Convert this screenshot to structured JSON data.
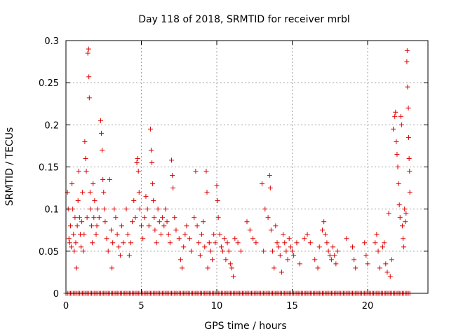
{
  "chart_data": {
    "type": "scatter",
    "title": "Day 118 of 2018, SRMTID for receiver mrbl",
    "xlabel": "GPS time / hours",
    "ylabel": "SRMTID / TECUs",
    "xlim": [
      0,
      24
    ],
    "ylim": [
      0,
      0.3
    ],
    "xticks": [
      0,
      5,
      10,
      15,
      20
    ],
    "yticks": [
      0,
      0.05,
      0.1,
      0.15,
      0.2,
      0.25,
      0.3
    ],
    "ytick_labels": [
      "0",
      "0.05",
      "0.1",
      "0.15",
      "0.2",
      "0.25",
      "0.3"
    ],
    "grid": true,
    "marker": "+",
    "series": [
      {
        "name": "SRMTID",
        "color": "#dd0000",
        "points": [
          [
            0.1,
            0.12
          ],
          [
            0.15,
            0.1
          ],
          [
            0.2,
            0.065
          ],
          [
            0.25,
            0.06
          ],
          [
            0.3,
            0.08
          ],
          [
            0.35,
            0.055
          ],
          [
            0.4,
            0.13
          ],
          [
            0.45,
            0.1
          ],
          [
            0.5,
            0.07
          ],
          [
            0.55,
            0.05
          ],
          [
            0.6,
            0.09
          ],
          [
            0.65,
            0.06
          ],
          [
            0.7,
            0.03
          ],
          [
            0.75,
            0.08
          ],
          [
            0.8,
            0.11
          ],
          [
            0.85,
            0.145
          ],
          [
            0.9,
            0.09
          ],
          [
            0.95,
            0.07
          ],
          [
            1.0,
            0.055
          ],
          [
            1.05,
            0.085
          ],
          [
            1.1,
            0.12
          ],
          [
            1.15,
            0.05
          ],
          [
            1.2,
            0.07
          ],
          [
            1.25,
            0.18
          ],
          [
            1.3,
            0.16
          ],
          [
            1.35,
            0.145
          ],
          [
            1.4,
            0.09
          ],
          [
            1.45,
            0.285
          ],
          [
            1.5,
            0.29
          ],
          [
            1.52,
            0.257
          ],
          [
            1.55,
            0.232
          ],
          [
            1.6,
            0.12
          ],
          [
            1.65,
            0.1
          ],
          [
            1.7,
            0.08
          ],
          [
            1.75,
            0.06
          ],
          [
            1.8,
            0.13
          ],
          [
            1.85,
            0.09
          ],
          [
            1.9,
            0.11
          ],
          [
            2.0,
            0.07
          ],
          [
            2.05,
            0.08
          ],
          [
            2.1,
            0.1
          ],
          [
            2.2,
            0.09
          ],
          [
            2.3,
            0.205
          ],
          [
            2.35,
            0.19
          ],
          [
            2.4,
            0.17
          ],
          [
            2.45,
            0.135
          ],
          [
            2.5,
            0.12
          ],
          [
            2.55,
            0.1
          ],
          [
            2.6,
            0.085
          ],
          [
            2.7,
            0.065
          ],
          [
            2.8,
            0.05
          ],
          [
            2.9,
            0.135
          ],
          [
            3.0,
            0.075
          ],
          [
            3.05,
            0.03
          ],
          [
            3.1,
            0.06
          ],
          [
            3.2,
            0.1
          ],
          [
            3.3,
            0.09
          ],
          [
            3.4,
            0.07
          ],
          [
            3.5,
            0.055
          ],
          [
            3.6,
            0.045
          ],
          [
            3.7,
            0.08
          ],
          [
            3.8,
            0.06
          ],
          [
            4.0,
            0.1
          ],
          [
            4.1,
            0.07
          ],
          [
            4.2,
            0.045
          ],
          [
            4.3,
            0.06
          ],
          [
            4.4,
            0.085
          ],
          [
            4.5,
            0.11
          ],
          [
            4.6,
            0.09
          ],
          [
            4.7,
            0.155
          ],
          [
            4.75,
            0.16
          ],
          [
            4.8,
            0.145
          ],
          [
            4.85,
            0.12
          ],
          [
            4.9,
            0.1
          ],
          [
            5.0,
            0.08
          ],
          [
            5.1,
            0.065
          ],
          [
            5.2,
            0.09
          ],
          [
            5.3,
            0.115
          ],
          [
            5.4,
            0.1
          ],
          [
            5.5,
            0.08
          ],
          [
            5.6,
            0.195
          ],
          [
            5.65,
            0.17
          ],
          [
            5.7,
            0.155
          ],
          [
            5.75,
            0.13
          ],
          [
            5.8,
            0.11
          ],
          [
            5.85,
            0.09
          ],
          [
            5.9,
            0.075
          ],
          [
            6.0,
            0.06
          ],
          [
            6.1,
            0.1
          ],
          [
            6.2,
            0.085
          ],
          [
            6.3,
            0.07
          ],
          [
            6.4,
            0.09
          ],
          [
            6.5,
            0.08
          ],
          [
            6.6,
            0.1
          ],
          [
            6.7,
            0.085
          ],
          [
            6.8,
            0.07
          ],
          [
            6.9,
            0.06
          ],
          [
            7.0,
            0.158
          ],
          [
            7.05,
            0.14
          ],
          [
            7.1,
            0.125
          ],
          [
            7.2,
            0.09
          ],
          [
            7.3,
            0.075
          ],
          [
            7.5,
            0.065
          ],
          [
            7.6,
            0.04
          ],
          [
            7.7,
            0.03
          ],
          [
            7.8,
            0.055
          ],
          [
            7.9,
            0.07
          ],
          [
            8.0,
            0.08
          ],
          [
            8.2,
            0.065
          ],
          [
            8.3,
            0.05
          ],
          [
            8.5,
            0.09
          ],
          [
            8.6,
            0.145
          ],
          [
            8.7,
            0.08
          ],
          [
            8.8,
            0.06
          ],
          [
            8.9,
            0.045
          ],
          [
            9.0,
            0.07
          ],
          [
            9.1,
            0.085
          ],
          [
            9.2,
            0.055
          ],
          [
            9.3,
            0.145
          ],
          [
            9.35,
            0.12
          ],
          [
            9.4,
            0.03
          ],
          [
            9.5,
            0.06
          ],
          [
            9.6,
            0.05
          ],
          [
            9.7,
            0.04
          ],
          [
            9.8,
            0.07
          ],
          [
            9.9,
            0.06
          ],
          [
            10.0,
            0.128
          ],
          [
            10.05,
            0.11
          ],
          [
            10.1,
            0.09
          ],
          [
            10.2,
            0.07
          ],
          [
            10.3,
            0.055
          ],
          [
            10.4,
            0.05
          ],
          [
            10.5,
            0.065
          ],
          [
            10.6,
            0.04
          ],
          [
            10.7,
            0.06
          ],
          [
            10.8,
            0.05
          ],
          [
            10.9,
            0.035
          ],
          [
            11.0,
            0.03
          ],
          [
            11.1,
            0.02
          ],
          [
            11.2,
            0.065
          ],
          [
            11.4,
            0.06
          ],
          [
            11.6,
            0.05
          ],
          [
            12.0,
            0.085
          ],
          [
            12.2,
            0.075
          ],
          [
            12.4,
            0.065
          ],
          [
            12.6,
            0.06
          ],
          [
            13.0,
            0.13
          ],
          [
            13.1,
            0.05
          ],
          [
            13.2,
            0.1
          ],
          [
            13.4,
            0.09
          ],
          [
            13.5,
            0.14
          ],
          [
            13.55,
            0.125
          ],
          [
            13.6,
            0.075
          ],
          [
            13.7,
            0.05
          ],
          [
            13.8,
            0.03
          ],
          [
            13.9,
            0.08
          ],
          [
            14.0,
            0.06
          ],
          [
            14.1,
            0.055
          ],
          [
            14.2,
            0.045
          ],
          [
            14.3,
            0.025
          ],
          [
            14.4,
            0.07
          ],
          [
            14.5,
            0.06
          ],
          [
            14.6,
            0.05
          ],
          [
            14.7,
            0.04
          ],
          [
            14.8,
            0.065
          ],
          [
            14.9,
            0.055
          ],
          [
            15.0,
            0.05
          ],
          [
            15.1,
            0.045
          ],
          [
            15.3,
            0.06
          ],
          [
            15.5,
            0.035
          ],
          [
            15.8,
            0.065
          ],
          [
            16.0,
            0.07
          ],
          [
            16.2,
            0.06
          ],
          [
            16.5,
            0.04
          ],
          [
            16.7,
            0.03
          ],
          [
            16.8,
            0.055
          ],
          [
            17.0,
            0.075
          ],
          [
            17.1,
            0.085
          ],
          [
            17.2,
            0.07
          ],
          [
            17.3,
            0.06
          ],
          [
            17.4,
            0.05
          ],
          [
            17.5,
            0.045
          ],
          [
            17.6,
            0.04
          ],
          [
            17.7,
            0.055
          ],
          [
            17.8,
            0.045
          ],
          [
            17.9,
            0.035
          ],
          [
            18.0,
            0.05
          ],
          [
            18.6,
            0.065
          ],
          [
            19.0,
            0.055
          ],
          [
            19.1,
            0.04
          ],
          [
            19.2,
            0.03
          ],
          [
            19.8,
            0.06
          ],
          [
            19.9,
            0.045
          ],
          [
            20.0,
            0.035
          ],
          [
            20.5,
            0.06
          ],
          [
            20.6,
            0.07
          ],
          [
            20.7,
            0.05
          ],
          [
            20.8,
            0.03
          ],
          [
            21.0,
            0.055
          ],
          [
            21.1,
            0.06
          ],
          [
            21.2,
            0.035
          ],
          [
            21.3,
            0.025
          ],
          [
            21.4,
            0.095
          ],
          [
            21.5,
            0.02
          ],
          [
            21.6,
            0.04
          ],
          [
            21.7,
            0.195
          ],
          [
            21.8,
            0.21
          ],
          [
            21.85,
            0.215
          ],
          [
            21.9,
            0.18
          ],
          [
            21.95,
            0.165
          ],
          [
            22.0,
            0.15
          ],
          [
            22.05,
            0.13
          ],
          [
            22.1,
            0.105
          ],
          [
            22.15,
            0.09
          ],
          [
            22.2,
            0.21
          ],
          [
            22.25,
            0.2
          ],
          [
            22.3,
            0.08
          ],
          [
            22.35,
            0.065
          ],
          [
            22.4,
            0.055
          ],
          [
            22.45,
            0.1
          ],
          [
            22.5,
            0.085
          ],
          [
            22.55,
            0.095
          ],
          [
            22.6,
            0.275
          ],
          [
            22.62,
            0.288
          ],
          [
            22.65,
            0.245
          ],
          [
            22.7,
            0.22
          ],
          [
            22.72,
            0.185
          ],
          [
            22.75,
            0.16
          ],
          [
            22.78,
            0.145
          ],
          [
            22.8,
            0.12
          ]
        ]
      }
    ],
    "zero_band": {
      "from": 0,
      "to": 22.8,
      "step": 0.1,
      "value": 0
    }
  }
}
